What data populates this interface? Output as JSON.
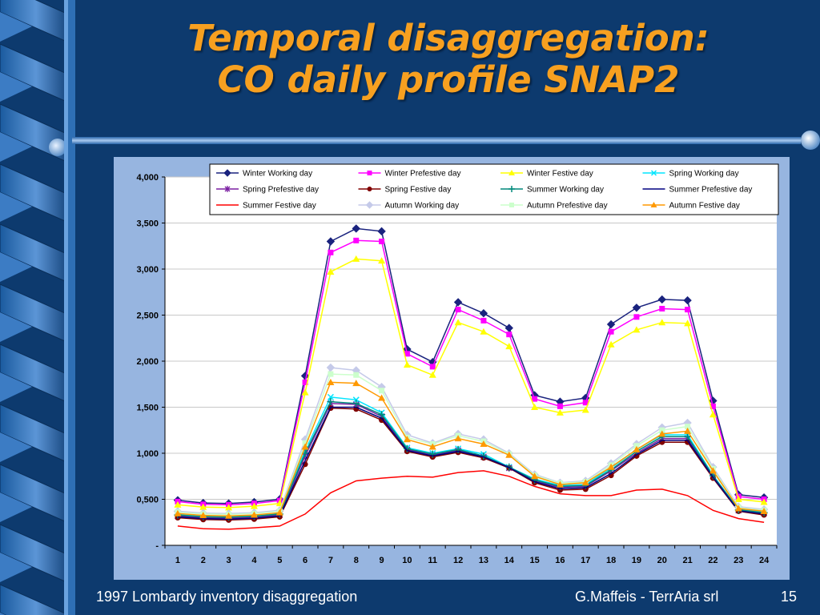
{
  "slide": {
    "title_line1": "Temporal disaggregation:",
    "title_line2": "CO daily profile SNAP2",
    "footer_left": "1997 Lombardy inventory disaggregation",
    "footer_author": "G.Maffeis - TerrAria srl",
    "page_number": "15",
    "colors": {
      "background": "#0d3a6e",
      "title": "#f7a020",
      "chart_panel": "#97b5e0"
    }
  },
  "chart_data": {
    "type": "line",
    "x": [
      1,
      2,
      3,
      4,
      5,
      6,
      7,
      8,
      9,
      10,
      11,
      12,
      13,
      14,
      15,
      16,
      17,
      18,
      19,
      20,
      21,
      22,
      23,
      24
    ],
    "ylim": [
      0,
      4000
    ],
    "yticks": [
      0,
      500,
      1000,
      1500,
      2000,
      2500,
      3000,
      3500,
      4000
    ],
    "ytick_labels": [
      "-",
      "0,500",
      "1,000",
      "1,500",
      "2,000",
      "2,500",
      "3,000",
      "3,500",
      "4,000"
    ],
    "xlabel": "",
    "ylabel": "",
    "grid": "horizontal",
    "legend_position": "top",
    "series": [
      {
        "name": "Winter Working day",
        "color": "#1a237e",
        "marker": "diamond",
        "values": [
          490,
          460,
          455,
          470,
          500,
          1840,
          3300,
          3440,
          3410,
          2130,
          1990,
          2640,
          2520,
          2360,
          1630,
          1560,
          1600,
          2400,
          2580,
          2670,
          2660,
          1570,
          550,
          520
        ]
      },
      {
        "name": "Winter Prefestive day",
        "color": "#ff00ff",
        "marker": "square",
        "values": [
          475,
          445,
          440,
          455,
          485,
          1770,
          3180,
          3310,
          3300,
          2080,
          1940,
          2560,
          2440,
          2290,
          1590,
          1510,
          1550,
          2320,
          2480,
          2570,
          2560,
          1510,
          530,
          500
        ]
      },
      {
        "name": "Winter Festive day",
        "color": "#ffff00",
        "marker": "triangle",
        "values": [
          440,
          415,
          410,
          425,
          455,
          1660,
          2970,
          3110,
          3090,
          1960,
          1850,
          2420,
          2320,
          2160,
          1500,
          1440,
          1470,
          2180,
          2340,
          2420,
          2410,
          1420,
          500,
          470
        ]
      },
      {
        "name": "Spring Working day",
        "color": "#00e5ff",
        "marker": "x",
        "values": [
          340,
          320,
          315,
          325,
          350,
          1030,
          1610,
          1580,
          1440,
          1060,
          1000,
          1050,
          990,
          850,
          720,
          650,
          660,
          840,
          1040,
          1200,
          1200,
          760,
          390,
          360
        ]
      },
      {
        "name": "Spring Prefestive day",
        "color": "#7b1fa2",
        "marker": "star",
        "values": [
          320,
          300,
          295,
          305,
          330,
          970,
          1540,
          1530,
          1400,
          1040,
          980,
          1030,
          960,
          840,
          700,
          630,
          640,
          810,
          1000,
          1160,
          1160,
          750,
          380,
          350
        ]
      },
      {
        "name": "Spring Festive day",
        "color": "#800000",
        "marker": "circle",
        "values": [
          300,
          280,
          275,
          285,
          310,
          880,
          1490,
          1480,
          1360,
          1020,
          960,
          1010,
          950,
          840,
          680,
          600,
          610,
          760,
          970,
          1120,
          1120,
          730,
          370,
          330
        ]
      },
      {
        "name": "Summer Working day",
        "color": "#00897b",
        "marker": "plus",
        "values": [
          330,
          310,
          305,
          315,
          340,
          1000,
          1560,
          1540,
          1420,
          1050,
          990,
          1040,
          970,
          850,
          710,
          640,
          650,
          820,
          1020,
          1180,
          1180,
          755,
          385,
          355
        ]
      },
      {
        "name": "Summer Prefestive day",
        "color": "#000080",
        "marker": "none",
        "values": [
          310,
          290,
          285,
          295,
          320,
          920,
          1500,
          1500,
          1380,
          1030,
          970,
          1020,
          960,
          845,
          690,
          615,
          625,
          780,
          985,
          1140,
          1140,
          740,
          375,
          340
        ]
      },
      {
        "name": "Summer Festive day",
        "color": "#ff0000",
        "marker": "none",
        "values": [
          210,
          180,
          175,
          190,
          210,
          340,
          570,
          700,
          730,
          750,
          740,
          790,
          810,
          750,
          640,
          560,
          540,
          540,
          600,
          610,
          540,
          380,
          290,
          250
        ]
      },
      {
        "name": "Autumn Working day",
        "color": "#c5cae9",
        "marker": "diamond",
        "values": [
          370,
          350,
          345,
          355,
          380,
          1150,
          1930,
          1900,
          1720,
          1200,
          1110,
          1210,
          1150,
          1000,
          770,
          680,
          700,
          890,
          1100,
          1280,
          1330,
          850,
          420,
          390
        ]
      },
      {
        "name": "Autumn Prefestive day",
        "color": "#ccffcc",
        "marker": "square",
        "values": [
          360,
          340,
          335,
          345,
          370,
          1110,
          1860,
          1850,
          1680,
          1170,
          1100,
          1190,
          1130,
          990,
          760,
          675,
          690,
          870,
          1080,
          1250,
          1290,
          830,
          410,
          380
        ]
      },
      {
        "name": "Autumn Festive day",
        "color": "#ff9900",
        "marker": "triangle",
        "values": [
          345,
          325,
          320,
          330,
          355,
          1070,
          1770,
          1760,
          1600,
          1150,
          1070,
          1160,
          1100,
          980,
          750,
          660,
          680,
          850,
          1040,
          1210,
          1240,
          810,
          400,
          370
        ]
      }
    ]
  }
}
